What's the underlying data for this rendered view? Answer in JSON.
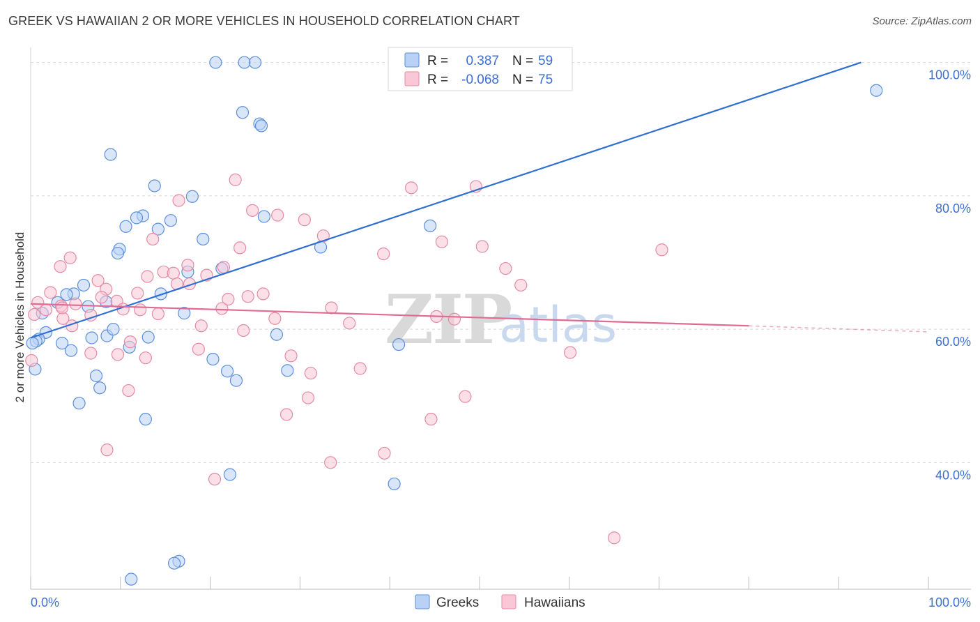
{
  "header": {
    "title": "GREEK VS HAWAIIAN 2 OR MORE VEHICLES IN HOUSEHOLD CORRELATION CHART",
    "source": "Source: ZipAtlas.com"
  },
  "colors": {
    "greeks_fill": "#b9d1f5",
    "greeks_stroke": "#5b8fd9",
    "greeks_line": "#2f6fd0",
    "hawaiians_fill": "#f9c7d6",
    "hawaiians_stroke": "#e58aa6",
    "hawaiians_line": "#e06b93",
    "grid": "#d8d8d8",
    "accent_text": "#3d6fd1"
  },
  "legend_top": {
    "rows": [
      {
        "r_label": "R =",
        "r_value": "0.387",
        "n_label": "N =",
        "n_value": "59"
      },
      {
        "r_label": "R =",
        "r_value": "-0.068",
        "n_label": "N =",
        "n_value": "75"
      }
    ]
  },
  "legend_bottom": {
    "greeks": "Greeks",
    "hawaiians": "Hawaiians"
  },
  "watermark": {
    "part1": "ZIP",
    "part2": "atlas"
  },
  "chart_data": {
    "type": "scatter",
    "title": "GREEK VS HAWAIIAN 2 OR MORE VEHICLES IN HOUSEHOLD CORRELATION CHART",
    "xlabel": "",
    "ylabel": "2 or more Vehicles in Household",
    "xlim": [
      0,
      100
    ],
    "ylim": [
      21,
      101
    ],
    "x_tick_labels": {
      "left": "0.0%",
      "right": "100.0%"
    },
    "y_ticks": [
      {
        "value": 40,
        "label": "40.0%"
      },
      {
        "value": 60,
        "label": "60.0%"
      },
      {
        "value": 80,
        "label": "80.0%"
      },
      {
        "value": 100,
        "label": "100.0%"
      }
    ],
    "series": [
      {
        "name": "Greeks",
        "r": 0.387,
        "n": 59,
        "trend": {
          "x0": 0,
          "y0": 58.7,
          "x1": 92.5,
          "y1": 100.0
        },
        "points": [
          [
            20.6,
            100.0
          ],
          [
            23.8,
            100.0
          ],
          [
            25.0,
            100.0
          ],
          [
            94.2,
            95.8
          ],
          [
            23.6,
            92.5
          ],
          [
            25.5,
            90.8
          ],
          [
            25.7,
            90.5
          ],
          [
            8.9,
            86.2
          ],
          [
            13.8,
            81.5
          ],
          [
            18.0,
            79.9
          ],
          [
            12.5,
            77.0
          ],
          [
            11.8,
            76.7
          ],
          [
            15.6,
            76.3
          ],
          [
            26.0,
            76.9
          ],
          [
            10.6,
            75.4
          ],
          [
            14.2,
            75.0
          ],
          [
            44.5,
            75.5
          ],
          [
            19.2,
            73.5
          ],
          [
            9.9,
            72.0
          ],
          [
            9.7,
            71.4
          ],
          [
            32.3,
            72.3
          ],
          [
            21.3,
            69.1
          ],
          [
            17.5,
            68.6
          ],
          [
            5.9,
            66.6
          ],
          [
            4.8,
            65.3
          ],
          [
            4.0,
            65.2
          ],
          [
            14.5,
            65.3
          ],
          [
            8.4,
            64.1
          ],
          [
            3.0,
            64.0
          ],
          [
            6.4,
            63.4
          ],
          [
            17.1,
            62.4
          ],
          [
            1.3,
            62.4
          ],
          [
            1.7,
            59.5
          ],
          [
            8.5,
            59.0
          ],
          [
            6.8,
            58.7
          ],
          [
            13.1,
            58.8
          ],
          [
            0.9,
            58.5
          ],
          [
            0.6,
            58.2
          ],
          [
            3.5,
            57.9
          ],
          [
            11.0,
            57.3
          ],
          [
            4.5,
            56.8
          ],
          [
            0.2,
            57.9
          ],
          [
            41.0,
            57.7
          ],
          [
            20.3,
            55.5
          ],
          [
            0.5,
            54.0
          ],
          [
            28.6,
            53.8
          ],
          [
            21.9,
            53.7
          ],
          [
            7.3,
            53.0
          ],
          [
            22.9,
            52.3
          ],
          [
            7.7,
            51.2
          ],
          [
            5.4,
            48.9
          ],
          [
            12.8,
            46.5
          ],
          [
            22.2,
            38.2
          ],
          [
            40.5,
            36.8
          ],
          [
            16.5,
            25.2
          ],
          [
            16.0,
            24.9
          ],
          [
            11.2,
            22.5
          ],
          [
            27.4,
            59.2
          ],
          [
            9.2,
            60.0
          ]
        ]
      },
      {
        "name": "Hawaiians",
        "r": -0.068,
        "n": 75,
        "trend": {
          "x0": 0,
          "y0": 63.8,
          "x1": 80.0,
          "y1": 60.5,
          "dash_to_x": 100.0,
          "dash_to_y": 59.6
        },
        "points": [
          [
            22.8,
            82.4
          ],
          [
            42.4,
            81.2
          ],
          [
            49.6,
            81.4
          ],
          [
            16.5,
            79.3
          ],
          [
            24.7,
            77.8
          ],
          [
            27.5,
            77.1
          ],
          [
            30.5,
            76.4
          ],
          [
            32.6,
            74.0
          ],
          [
            13.6,
            73.5
          ],
          [
            45.8,
            73.1
          ],
          [
            50.3,
            72.4
          ],
          [
            23.3,
            72.2
          ],
          [
            70.3,
            71.9
          ],
          [
            39.3,
            71.3
          ],
          [
            4.4,
            70.7
          ],
          [
            3.3,
            69.4
          ],
          [
            17.5,
            69.6
          ],
          [
            21.5,
            69.3
          ],
          [
            52.9,
            69.1
          ],
          [
            14.8,
            68.6
          ],
          [
            15.9,
            68.4
          ],
          [
            13.0,
            67.9
          ],
          [
            19.6,
            68.1
          ],
          [
            7.5,
            67.3
          ],
          [
            16.3,
            66.8
          ],
          [
            17.7,
            66.8
          ],
          [
            54.6,
            66.6
          ],
          [
            8.4,
            66.0
          ],
          [
            0.8,
            64.0
          ],
          [
            2.2,
            65.5
          ],
          [
            7.9,
            64.8
          ],
          [
            11.9,
            65.4
          ],
          [
            24.2,
            64.9
          ],
          [
            22.0,
            64.5
          ],
          [
            25.9,
            65.3
          ],
          [
            9.6,
            64.2
          ],
          [
            5.0,
            63.8
          ],
          [
            3.4,
            63.5
          ],
          [
            1.7,
            62.9
          ],
          [
            10.3,
            63.0
          ],
          [
            12.2,
            62.9
          ],
          [
            21.3,
            63.1
          ],
          [
            14.2,
            62.3
          ],
          [
            6.7,
            62.1
          ],
          [
            0.4,
            62.2
          ],
          [
            3.6,
            61.6
          ],
          [
            27.2,
            61.6
          ],
          [
            45.2,
            61.9
          ],
          [
            47.2,
            61.5
          ],
          [
            19.0,
            60.5
          ],
          [
            35.5,
            60.9
          ],
          [
            4.6,
            60.5
          ],
          [
            23.7,
            59.8
          ],
          [
            11.1,
            58.1
          ],
          [
            18.7,
            57.0
          ],
          [
            6.7,
            56.4
          ],
          [
            9.7,
            56.2
          ],
          [
            29.0,
            56.0
          ],
          [
            60.1,
            56.5
          ],
          [
            12.8,
            55.7
          ],
          [
            0.1,
            55.3
          ],
          [
            36.7,
            54.1
          ],
          [
            31.2,
            53.4
          ],
          [
            10.9,
            50.8
          ],
          [
            30.9,
            49.7
          ],
          [
            48.4,
            49.9
          ],
          [
            28.5,
            47.2
          ],
          [
            44.6,
            46.5
          ],
          [
            8.5,
            41.9
          ],
          [
            39.4,
            41.4
          ],
          [
            33.4,
            40.0
          ],
          [
            20.5,
            37.5
          ],
          [
            65.0,
            28.7
          ],
          [
            3.5,
            63.2
          ],
          [
            33.5,
            63.2
          ]
        ]
      }
    ]
  }
}
